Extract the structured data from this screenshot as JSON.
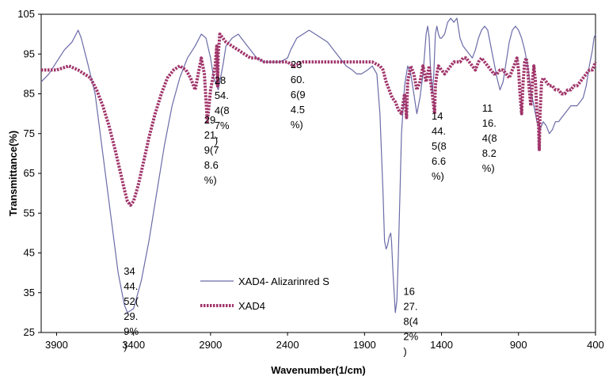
{
  "chart_data": {
    "type": "line",
    "title": "",
    "xlabel": "Wavenumber(1/cm)",
    "ylabel": "Transmittance(%)",
    "xlim": [
      4000,
      400
    ],
    "ylim": [
      25,
      105
    ],
    "x_reversed": true,
    "x_ticks": [
      "3900",
      "3400",
      "2900",
      "2400",
      "1900",
      "1400",
      "900",
      "400"
    ],
    "y_ticks": [
      "25",
      "35",
      "45",
      "55",
      "65",
      "75",
      "85",
      "95",
      "105"
    ],
    "legend_position": "bottom-center",
    "series": [
      {
        "name": "XAD4- Alizarinred S",
        "color": "#6b6ba8",
        "style": "solid",
        "points": [
          [
            4000,
            88
          ],
          [
            3950,
            90
          ],
          [
            3900,
            93
          ],
          [
            3850,
            96
          ],
          [
            3800,
            98
          ],
          [
            3760,
            101
          ],
          [
            3740,
            99
          ],
          [
            3700,
            93
          ],
          [
            3650,
            85
          ],
          [
            3600,
            70
          ],
          [
            3550,
            55
          ],
          [
            3500,
            40
          ],
          [
            3460,
            32
          ],
          [
            3440,
            30
          ],
          [
            3400,
            31
          ],
          [
            3350,
            38
          ],
          [
            3300,
            48
          ],
          [
            3250,
            60
          ],
          [
            3200,
            72
          ],
          [
            3150,
            82
          ],
          [
            3100,
            89
          ],
          [
            3050,
            94
          ],
          [
            3000,
            97
          ],
          [
            2960,
            100
          ],
          [
            2930,
            99
          ],
          [
            2900,
            94
          ],
          [
            2880,
            89
          ],
          [
            2850,
            86
          ],
          [
            2820,
            92
          ],
          [
            2800,
            97
          ],
          [
            2760,
            99
          ],
          [
            2720,
            100
          ],
          [
            2680,
            98
          ],
          [
            2640,
            96
          ],
          [
            2600,
            94
          ],
          [
            2550,
            93
          ],
          [
            2500,
            93
          ],
          [
            2450,
            93
          ],
          [
            2400,
            94
          ],
          [
            2380,
            96
          ],
          [
            2340,
            99
          ],
          [
            2300,
            100
          ],
          [
            2260,
            101
          ],
          [
            2220,
            100
          ],
          [
            2180,
            99
          ],
          [
            2140,
            98
          ],
          [
            2100,
            96
          ],
          [
            2060,
            94
          ],
          [
            2020,
            92
          ],
          [
            1980,
            91
          ],
          [
            1950,
            90
          ],
          [
            1920,
            90
          ],
          [
            1880,
            91
          ],
          [
            1850,
            92
          ],
          [
            1820,
            90
          ],
          [
            1800,
            80
          ],
          [
            1780,
            60
          ],
          [
            1770,
            48
          ],
          [
            1760,
            46
          ],
          [
            1750,
            47
          ],
          [
            1740,
            49
          ],
          [
            1730,
            50
          ],
          [
            1725,
            48
          ],
          [
            1715,
            40
          ],
          [
            1700,
            30
          ],
          [
            1690,
            33
          ],
          [
            1680,
            45
          ],
          [
            1670,
            60
          ],
          [
            1660,
            75
          ],
          [
            1640,
            87
          ],
          [
            1620,
            92
          ],
          [
            1600,
            90
          ],
          [
            1580,
            85
          ],
          [
            1560,
            80
          ],
          [
            1540,
            84
          ],
          [
            1520,
            90
          ],
          [
            1500,
            100
          ],
          [
            1490,
            102
          ],
          [
            1480,
            99
          ],
          [
            1470,
            90
          ],
          [
            1460,
            85
          ],
          [
            1450,
            90
          ],
          [
            1440,
            100
          ],
          [
            1430,
            102
          ],
          [
            1420,
            100
          ],
          [
            1410,
            99
          ],
          [
            1400,
            99
          ],
          [
            1380,
            100
          ],
          [
            1360,
            103
          ],
          [
            1340,
            104
          ],
          [
            1320,
            103
          ],
          [
            1300,
            104
          ],
          [
            1280,
            99
          ],
          [
            1260,
            97
          ],
          [
            1240,
            96
          ],
          [
            1220,
            95
          ],
          [
            1200,
            94
          ],
          [
            1180,
            96
          ],
          [
            1160,
            99
          ],
          [
            1140,
            101
          ],
          [
            1120,
            102
          ],
          [
            1100,
            101
          ],
          [
            1080,
            97
          ],
          [
            1060,
            93
          ],
          [
            1040,
            89
          ],
          [
            1020,
            86
          ],
          [
            1000,
            88
          ],
          [
            980,
            93
          ],
          [
            960,
            98
          ],
          [
            940,
            101
          ],
          [
            920,
            102
          ],
          [
            900,
            101
          ],
          [
            880,
            99
          ],
          [
            860,
            96
          ],
          [
            840,
            92
          ],
          [
            820,
            86
          ],
          [
            800,
            82
          ],
          [
            780,
            78
          ],
          [
            760,
            76
          ],
          [
            740,
            78
          ],
          [
            720,
            77
          ],
          [
            700,
            75
          ],
          [
            680,
            76
          ],
          [
            660,
            78
          ],
          [
            640,
            78
          ],
          [
            620,
            79
          ],
          [
            600,
            80
          ],
          [
            580,
            81
          ],
          [
            560,
            82
          ],
          [
            540,
            82
          ],
          [
            520,
            82
          ],
          [
            500,
            83
          ],
          [
            480,
            84
          ],
          [
            460,
            87
          ],
          [
            440,
            92
          ],
          [
            420,
            96
          ],
          [
            410,
            99
          ],
          [
            400,
            100
          ]
        ]
      },
      {
        "name": "XAD4",
        "color": "#a0356a",
        "style": "dotted",
        "points": [
          [
            4000,
            91
          ],
          [
            3900,
            91
          ],
          [
            3820,
            92
          ],
          [
            3760,
            91
          ],
          [
            3720,
            90
          ],
          [
            3680,
            89
          ],
          [
            3640,
            86
          ],
          [
            3600,
            82
          ],
          [
            3560,
            77
          ],
          [
            3520,
            71
          ],
          [
            3490,
            66
          ],
          [
            3460,
            61
          ],
          [
            3440,
            58
          ],
          [
            3420,
            57
          ],
          [
            3400,
            58
          ],
          [
            3370,
            62
          ],
          [
            3340,
            67
          ],
          [
            3300,
            74
          ],
          [
            3260,
            80
          ],
          [
            3220,
            85
          ],
          [
            3180,
            89
          ],
          [
            3140,
            91
          ],
          [
            3100,
            92
          ],
          [
            3060,
            91
          ],
          [
            3030,
            89
          ],
          [
            3000,
            86
          ],
          [
            2980,
            90
          ],
          [
            2960,
            94
          ],
          [
            2940,
            90
          ],
          [
            2921,
            78
          ],
          [
            2910,
            82
          ],
          [
            2900,
            86
          ],
          [
            2880,
            90
          ],
          [
            2870,
            92
          ],
          [
            2860,
            97
          ],
          [
            2854,
            87
          ],
          [
            2850,
            95
          ],
          [
            2840,
            100
          ],
          [
            2820,
            99
          ],
          [
            2800,
            98
          ],
          [
            2760,
            97
          ],
          [
            2720,
            96
          ],
          [
            2680,
            95
          ],
          [
            2640,
            94
          ],
          [
            2600,
            94
          ],
          [
            2550,
            93
          ],
          [
            2500,
            93
          ],
          [
            2450,
            93
          ],
          [
            2400,
            93
          ],
          [
            2360,
            92
          ],
          [
            2300,
            93
          ],
          [
            2250,
            93
          ],
          [
            2200,
            93
          ],
          [
            2150,
            93
          ],
          [
            2100,
            93
          ],
          [
            2050,
            93
          ],
          [
            2000,
            93
          ],
          [
            1950,
            93
          ],
          [
            1900,
            93
          ],
          [
            1850,
            93
          ],
          [
            1800,
            92
          ],
          [
            1780,
            91
          ],
          [
            1760,
            88
          ],
          [
            1740,
            86
          ],
          [
            1720,
            84
          ],
          [
            1700,
            83
          ],
          [
            1680,
            81
          ],
          [
            1660,
            80
          ],
          [
            1640,
            85
          ],
          [
            1627,
            79
          ],
          [
            1620,
            88
          ],
          [
            1600,
            92
          ],
          [
            1580,
            90
          ],
          [
            1560,
            86
          ],
          [
            1540,
            88
          ],
          [
            1520,
            92
          ],
          [
            1500,
            88
          ],
          [
            1490,
            90
          ],
          [
            1480,
            92
          ],
          [
            1470,
            88
          ],
          [
            1460,
            85
          ],
          [
            1445,
            80
          ],
          [
            1440,
            87
          ],
          [
            1430,
            90
          ],
          [
            1420,
            92
          ],
          [
            1400,
            91
          ],
          [
            1380,
            90
          ],
          [
            1360,
            91
          ],
          [
            1340,
            92
          ],
          [
            1320,
            93
          ],
          [
            1300,
            93
          ],
          [
            1280,
            93
          ],
          [
            1260,
            94
          ],
          [
            1240,
            94
          ],
          [
            1220,
            93
          ],
          [
            1200,
            92
          ],
          [
            1180,
            91
          ],
          [
            1160,
            93
          ],
          [
            1140,
            94
          ],
          [
            1120,
            93
          ],
          [
            1100,
            92
          ],
          [
            1080,
            91
          ],
          [
            1060,
            90
          ],
          [
            1040,
            90
          ],
          [
            1020,
            91
          ],
          [
            1000,
            91
          ],
          [
            980,
            90
          ],
          [
            960,
            89
          ],
          [
            940,
            91
          ],
          [
            920,
            93
          ],
          [
            910,
            94
          ],
          [
            900,
            91
          ],
          [
            890,
            85
          ],
          [
            880,
            80
          ],
          [
            870,
            88
          ],
          [
            860,
            93
          ],
          [
            850,
            94
          ],
          [
            840,
            91
          ],
          [
            830,
            86
          ],
          [
            820,
            82
          ],
          [
            810,
            88
          ],
          [
            800,
            92
          ],
          [
            790,
            88
          ],
          [
            780,
            80
          ],
          [
            770,
            77
          ],
          [
            765,
            71
          ],
          [
            760,
            80
          ],
          [
            750,
            88
          ],
          [
            740,
            89
          ],
          [
            720,
            88
          ],
          [
            700,
            87
          ],
          [
            680,
            87
          ],
          [
            660,
            86
          ],
          [
            640,
            86
          ],
          [
            620,
            85
          ],
          [
            600,
            85
          ],
          [
            580,
            86
          ],
          [
            560,
            86
          ],
          [
            540,
            87
          ],
          [
            520,
            87
          ],
          [
            500,
            88
          ],
          [
            480,
            89
          ],
          [
            460,
            90
          ],
          [
            440,
            91
          ],
          [
            420,
            91
          ],
          [
            400,
            93
          ]
        ]
      }
    ],
    "annotations": [
      {
        "x": 3443,
        "y": 39.5,
        "lines": [
          "34",
          "44.",
          "52(",
          "29.",
          "9%",
          ")"
        ]
      },
      {
        "x": 2921,
        "y": 77.5,
        "lines": [
          "29",
          "21.",
          "9(7",
          "8.6",
          "%)"
        ]
      },
      {
        "x": 2854,
        "y": 87.5,
        "lines": [
          "28",
          "54.",
          "4(8",
          "7%",
          ")"
        ]
      },
      {
        "x": 2360,
        "y": 91.5,
        "lines": [
          "23",
          "60.",
          "6(9",
          "4.5",
          "%)"
        ]
      },
      {
        "x": 1627,
        "y": 34.5,
        "lines": [
          "16",
          "27.",
          "8(4",
          "2%",
          ")"
        ]
      },
      {
        "x": 1444,
        "y": 78.5,
        "lines": [
          "14",
          "44.",
          "5(8",
          "6.6",
          "%)"
        ]
      },
      {
        "x": 1116,
        "y": 80.5,
        "lines": [
          "11",
          "16.",
          "4(8",
          "8.2",
          "%)"
        ]
      }
    ]
  }
}
